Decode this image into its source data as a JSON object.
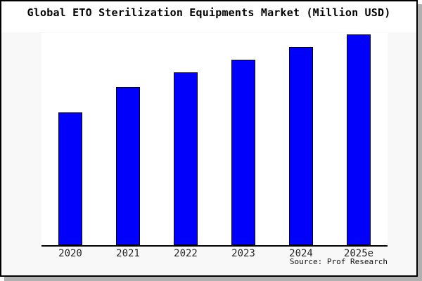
{
  "window": {
    "background": "#f8f8f8",
    "border_color": "#000000",
    "shadow_color": "#b0b0b0",
    "title_band_background": "#ffffff"
  },
  "chart_data": {
    "type": "bar",
    "title": "Global ETO Sterilization Equipments Market (Million USD)",
    "source": "Source: Prof Research",
    "categories": [
      "2020",
      "2021",
      "2022",
      "2023",
      "2024",
      "2025e"
    ],
    "values": [
      63,
      75,
      82,
      88,
      94,
      100
    ],
    "value_note": "relative bar heights (percent of tallest bar); no y-axis scale shown in figure",
    "xlabel": "",
    "ylabel": "",
    "ylim": [
      0,
      100
    ],
    "grid": false,
    "y_axis_visible": false,
    "legend_visible": false,
    "bar_color": "#0101fb",
    "bar_border_color": "#000000",
    "plot_background": "#ffffff",
    "axis_color": "#000000"
  }
}
